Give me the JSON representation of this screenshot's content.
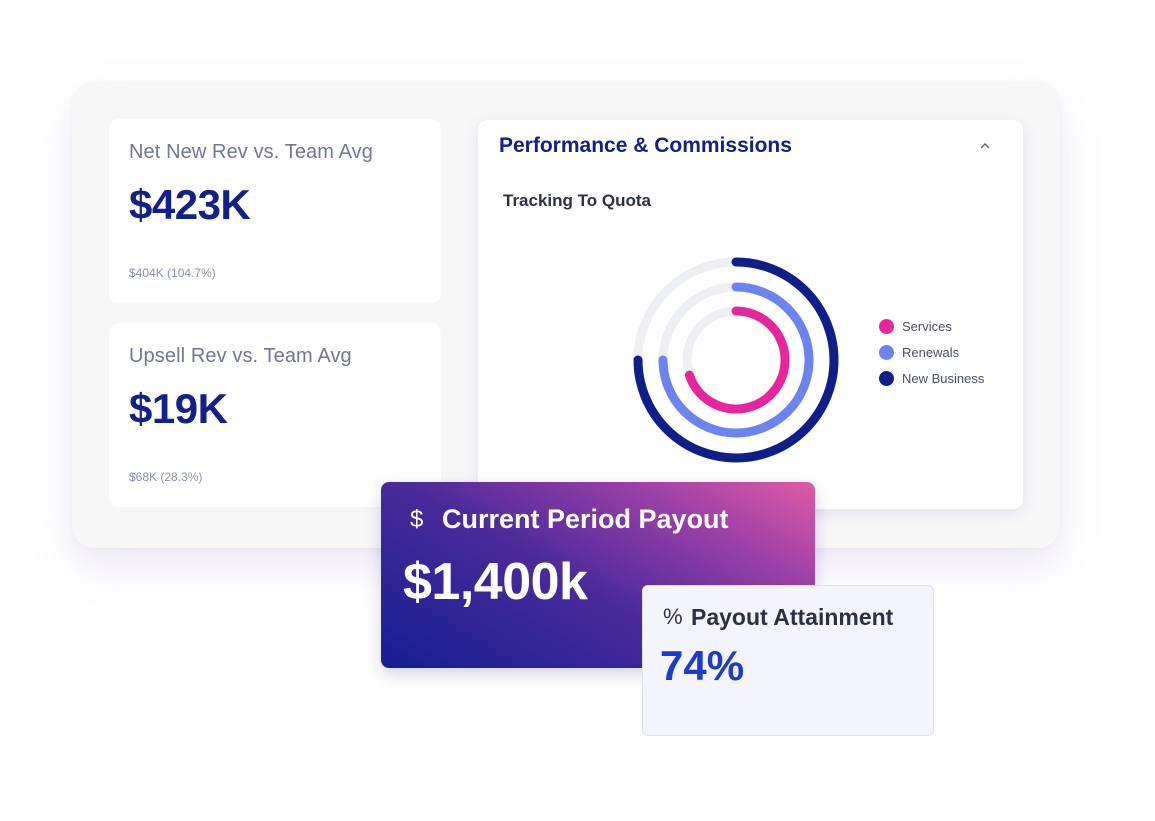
{
  "metrics": [
    {
      "title": "Net New Rev vs. Team Avg",
      "value": "$423K",
      "sub": "$404K (104.7%)"
    },
    {
      "title": "Upsell Rev vs. Team Avg",
      "value": "$19K",
      "sub": "$68K (28.3%)"
    }
  ],
  "performance": {
    "title": "Performance & Commissions",
    "collapse_icon": "chevron-up-icon",
    "subtitle": "Tracking To Quota",
    "track_color": "#eeeff5"
  },
  "chart_data": {
    "type": "donut-rings",
    "title": "Tracking To Quota",
    "series": [
      {
        "name": "Services",
        "value": 0.7,
        "color": "#e8259f"
      },
      {
        "name": "Renewals",
        "value": 0.75,
        "color": "#6c84f2"
      },
      {
        "name": "New Business",
        "value": 0.75,
        "color": "#0f1f8a"
      }
    ],
    "legend_position": "right"
  },
  "payout": {
    "icon": "dollar-icon",
    "icon_glyph": "$",
    "title": "Current Period Payout",
    "value": "$1,400k"
  },
  "attainment": {
    "icon": "percent-icon",
    "icon_glyph": "%",
    "title": "Payout Attainment",
    "value": "74%"
  }
}
